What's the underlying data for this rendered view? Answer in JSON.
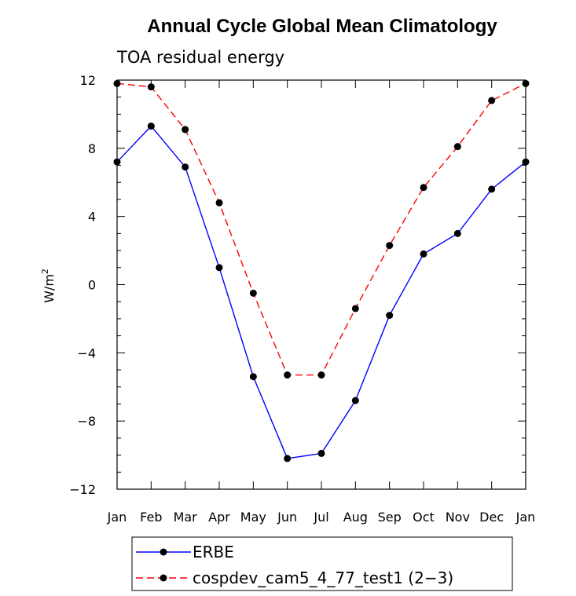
{
  "chart_data": {
    "type": "line",
    "title": "Annual Cycle Global Mean Climatology",
    "subtitle": "TOA residual energy",
    "ylabel": "W/m",
    "ylabel_superscript": "2",
    "categories": [
      "Jan",
      "Feb",
      "Mar",
      "Apr",
      "May",
      "Jun",
      "Jul",
      "Aug",
      "Sep",
      "Oct",
      "Nov",
      "Dec",
      "Jan"
    ],
    "ylim": [
      -12,
      12
    ],
    "yticks": [
      -12,
      -8,
      -4,
      0,
      4,
      8,
      12
    ],
    "ytick_labels": [
      "−12",
      "−8",
      "−4",
      "0",
      "4",
      "8",
      "12"
    ],
    "grid": false,
    "legend_placement": "bottom",
    "series": [
      {
        "name": "ERBE",
        "color": "#0000ff",
        "dashed": false,
        "values": [
          7.2,
          9.3,
          6.9,
          1.0,
          -5.4,
          -10.2,
          -9.9,
          -6.8,
          -1.8,
          1.8,
          3.0,
          5.6,
          7.2
        ]
      },
      {
        "name": "cospdev_cam5_4_77_test1 (2−3)",
        "color": "#ff0000",
        "dashed": true,
        "values": [
          11.8,
          11.6,
          9.1,
          4.8,
          -0.5,
          -5.3,
          -5.3,
          -1.4,
          2.3,
          5.7,
          8.1,
          10.8,
          11.8
        ]
      }
    ]
  }
}
